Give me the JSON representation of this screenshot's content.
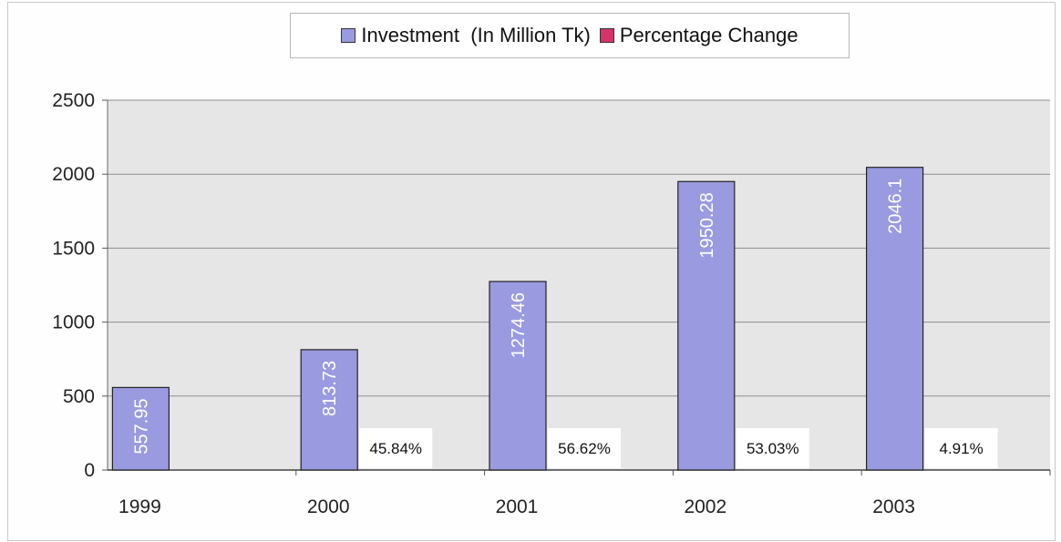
{
  "chart_data": {
    "type": "bar",
    "categories": [
      "1999",
      "2000",
      "2001",
      "2002",
      "2003"
    ],
    "series": [
      {
        "name": "Investment  (In Million Tk)",
        "values": [
          557.95,
          813.73,
          1274.46,
          1950.28,
          2046.1
        ],
        "labels": [
          "557.95",
          "813.73",
          "1274.46",
          "1950.28",
          "2046.1"
        ],
        "color": "#9a9ae0"
      },
      {
        "name": "Percentage Change",
        "values": [
          null,
          45.84,
          56.62,
          53.03,
          4.91
        ],
        "labels": [
          "",
          "45.84%",
          "56.62%",
          "53.03%",
          "4.91%"
        ],
        "color": "#d6336c"
      }
    ],
    "yticks": [
      "0",
      "500",
      "1000",
      "1500",
      "2000",
      "2500"
    ],
    "ylim": [
      0,
      2500
    ],
    "legend": "top-center",
    "grid": true,
    "plot_background": "#e6e6e6"
  }
}
